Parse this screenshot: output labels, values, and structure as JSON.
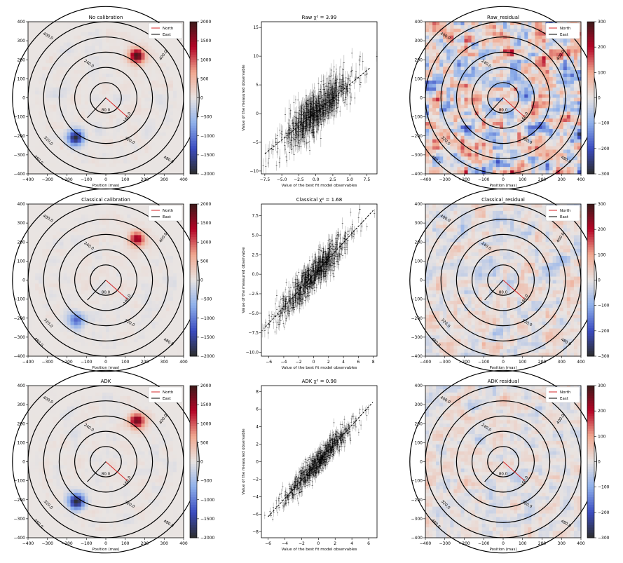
{
  "colors": {
    "cmap": [
      "#2d2d2d",
      "#3b4cc0",
      "#8fb0ea",
      "#e9e4e2",
      "#f0a890",
      "#b40426",
      "#3b1a1a"
    ],
    "north": "#d62728",
    "east": "#000000",
    "scatter": "#000000"
  },
  "common": {
    "map_xlabel": "Position (mas)",
    "map_ticks": [
      "−400",
      "−300",
      "−200",
      "−100",
      "0",
      "100",
      "200",
      "300",
      "400"
    ],
    "map_yticks": [
      "−400",
      "−300",
      "−200",
      "−100",
      "0",
      "100",
      "200",
      "300",
      "400"
    ],
    "legend": [
      "North",
      "East"
    ],
    "ring_labels": [
      "80.0",
      "160.0",
      "240.0",
      "320.0",
      "400.0",
      "480.0"
    ],
    "scatter_xlabel": "Value of the best fit model observables",
    "scatter_ylabel": "Value of the measured observable"
  },
  "chart_data": [
    {
      "type": "heatmap",
      "title": "No calibration",
      "xlim": [
        -400,
        400
      ],
      "ylim": [
        -400,
        400
      ],
      "colorbar": {
        "ticks": [
          "2000",
          "1500",
          "1000",
          "500",
          "0",
          "−500",
          "−1000",
          "−1500",
          "−2000"
        ],
        "range": [
          -2000,
          2000
        ]
      },
      "sources": [
        {
          "x": 160,
          "y": 220,
          "value": 2000
        },
        {
          "x": -155,
          "y": -210,
          "value": -2000
        }
      ]
    },
    {
      "type": "scatter",
      "title": "Raw χ² = 3.99",
      "xlim": [
        -8,
        9
      ],
      "ylim": [
        -10.5,
        16
      ],
      "xticks": [
        "−7.5",
        "−5.0",
        "−2.5",
        "0.0",
        "2.5",
        "5.0",
        "7.5"
      ],
      "yticks": [
        "−10",
        "−5",
        "0",
        "5",
        "10",
        "15"
      ],
      "fit": {
        "x": [
          -7.5,
          8.0
        ],
        "y": [
          -7.0,
          8.0
        ]
      },
      "spread": 3.2
    },
    {
      "type": "heatmap",
      "title": "Raw_residual",
      "xlim": [
        -400,
        400
      ],
      "ylim": [
        -400,
        400
      ],
      "colorbar": {
        "ticks": [
          "300",
          "200",
          "100",
          "0",
          "−100",
          "−200",
          "−300"
        ],
        "range": [
          -300,
          300
        ]
      }
    },
    {
      "type": "heatmap",
      "title": "Classical calibration",
      "xlim": [
        -400,
        400
      ],
      "ylim": [
        -400,
        400
      ],
      "colorbar": {
        "ticks": [
          "2000",
          "1500",
          "1000",
          "500",
          "0",
          "−500",
          "−1000",
          "−1500",
          "−2000"
        ],
        "range": [
          -2000,
          2000
        ]
      },
      "sources": [
        {
          "x": 160,
          "y": 215,
          "value": 1600
        },
        {
          "x": -150,
          "y": -210,
          "value": -1200
        }
      ]
    },
    {
      "type": "scatter",
      "title": "Classical χ² = 1.68",
      "xlim": [
        -7,
        8.5
      ],
      "ylim": [
        -10.5,
        9
      ],
      "xticks": [
        "−6",
        "−4",
        "−2",
        "0",
        "2",
        "4",
        "6",
        "8"
      ],
      "yticks": [
        "−10.0",
        "−7.5",
        "−5.0",
        "−2.5",
        "0.0",
        "2.5",
        "5.0",
        "7.5"
      ],
      "fit": {
        "x": [
          -6.5,
          8.0
        ],
        "y": [
          -6.8,
          8.2
        ]
      },
      "spread": 1.8
    },
    {
      "type": "heatmap",
      "title": "Classical_residual",
      "xlim": [
        -400,
        400
      ],
      "ylim": [
        -400,
        400
      ],
      "colorbar": {
        "ticks": [
          "300",
          "200",
          "100",
          "0",
          "−100",
          "−200",
          "−300"
        ],
        "range": [
          -300,
          300
        ]
      }
    },
    {
      "type": "heatmap",
      "title": "ADK",
      "xlim": [
        -400,
        400
      ],
      "ylim": [
        -400,
        400
      ],
      "colorbar": {
        "ticks": [
          "2000",
          "1500",
          "1000",
          "500",
          "0",
          "−500",
          "−1000",
          "−1500",
          "−2000"
        ],
        "range": [
          -2000,
          2000
        ]
      },
      "sources": [
        {
          "x": 160,
          "y": 215,
          "value": 1800
        },
        {
          "x": -150,
          "y": -210,
          "value": -1900
        }
      ]
    },
    {
      "type": "scatter",
      "title": "ADK χ² = 0.98",
      "xlim": [
        -6.8,
        7
      ],
      "ylim": [
        -8.7,
        8.7
      ],
      "xticks": [
        "−6",
        "−4",
        "−2",
        "0",
        "2",
        "4",
        "6"
      ],
      "yticks": [
        "−8",
        "−6",
        "−4",
        "−2",
        "0",
        "2",
        "4",
        "6",
        "8"
      ],
      "fit": {
        "x": [
          -6.0,
          6.5
        ],
        "y": [
          -6.3,
          6.8
        ]
      },
      "spread": 1.2
    },
    {
      "type": "heatmap",
      "title": "ADK residual",
      "xlim": [
        -400,
        400
      ],
      "ylim": [
        -400,
        400
      ],
      "colorbar": {
        "ticks": [
          "300",
          "200",
          "100",
          "0",
          "−100",
          "−200",
          "−300"
        ],
        "range": [
          -300,
          300
        ]
      }
    }
  ]
}
